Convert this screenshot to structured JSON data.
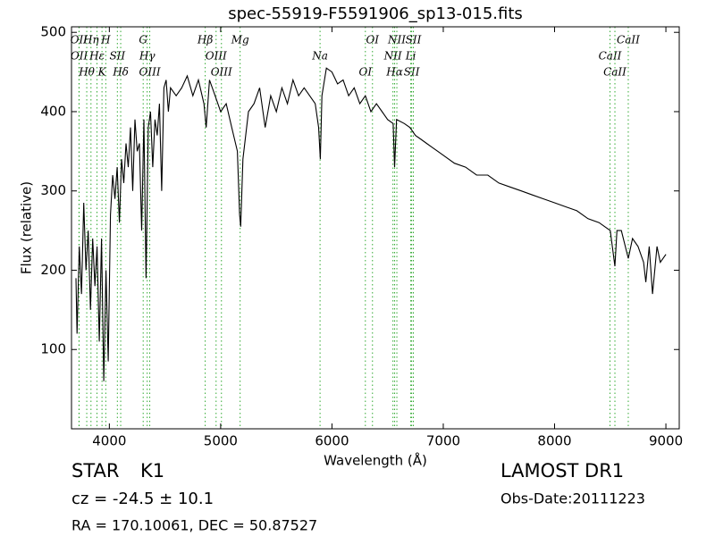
{
  "chart_data": {
    "type": "line",
    "title": "spec-55919-F5591906_sp13-015.fits",
    "x_label": "Wavelength (Å)",
    "y_label": "Flux (relative)",
    "color": "#000000",
    "line_color": "#33aa33",
    "xlim": [
      3660,
      9120
    ],
    "ylim": [
      0,
      507
    ],
    "xticks": [
      4000,
      5000,
      6000,
      7000,
      8000,
      9000
    ],
    "yticks": [
      100,
      200,
      300,
      400,
      500
    ],
    "x": [
      3700,
      3710,
      3730,
      3750,
      3770,
      3790,
      3810,
      3830,
      3850,
      3870,
      3890,
      3910,
      3930,
      3950,
      3970,
      3990,
      4010,
      4030,
      4050,
      4070,
      4090,
      4110,
      4130,
      4150,
      4170,
      4190,
      4210,
      4230,
      4250,
      4270,
      4290,
      4310,
      4330,
      4350,
      4370,
      4390,
      4410,
      4430,
      4450,
      4470,
      4490,
      4510,
      4530,
      4550,
      4600,
      4650,
      4700,
      4750,
      4800,
      4850,
      4870,
      4900,
      4950,
      5000,
      5050,
      5100,
      5150,
      5170,
      5180,
      5200,
      5250,
      5300,
      5350,
      5400,
      5450,
      5500,
      5550,
      5600,
      5650,
      5700,
      5750,
      5800,
      5850,
      5880,
      5895,
      5910,
      5950,
      6000,
      6050,
      6100,
      6150,
      6200,
      6250,
      6300,
      6350,
      6400,
      6450,
      6500,
      6550,
      6563,
      6580,
      6650,
      6700,
      6750,
      6800,
      6850,
      6900,
      6950,
      7000,
      7100,
      7200,
      7300,
      7400,
      7500,
      7600,
      7700,
      7800,
      7900,
      8000,
      8100,
      8200,
      8300,
      8400,
      8500,
      8542,
      8560,
      8600,
      8662,
      8700,
      8750,
      8800,
      8820,
      8850,
      8880,
      8920,
      8950,
      9000
    ],
    "values": [
      190,
      120,
      230,
      170,
      285,
      200,
      250,
      150,
      240,
      180,
      230,
      110,
      240,
      60,
      200,
      85,
      270,
      320,
      290,
      330,
      260,
      340,
      310,
      360,
      330,
      380,
      300,
      390,
      350,
      360,
      250,
      390,
      190,
      380,
      400,
      330,
      390,
      370,
      410,
      300,
      430,
      440,
      400,
      430,
      420,
      430,
      445,
      420,
      440,
      410,
      380,
      440,
      420,
      400,
      410,
      380,
      350,
      270,
      255,
      340,
      400,
      410,
      430,
      380,
      420,
      400,
      430,
      410,
      440,
      420,
      430,
      420,
      410,
      380,
      340,
      420,
      455,
      450,
      435,
      440,
      420,
      430,
      410,
      420,
      400,
      410,
      400,
      390,
      385,
      330,
      390,
      385,
      380,
      370,
      365,
      360,
      355,
      350,
      345,
      335,
      330,
      320,
      320,
      310,
      305,
      300,
      295,
      290,
      285,
      280,
      275,
      265,
      260,
      250,
      205,
      250,
      250,
      215,
      240,
      230,
      210,
      185,
      230,
      170,
      230,
      210,
      220
    ],
    "spectral_lines": [
      {
        "wavelength": 3727,
        "label": "OII"
      },
      {
        "wavelength": 3729,
        "label": "OII"
      },
      {
        "wavelength": 3797,
        "label": "Hθ"
      },
      {
        "wavelength": 3835,
        "label": "Hη"
      },
      {
        "wavelength": 3889,
        "label": "Hε"
      },
      {
        "wavelength": 3934,
        "label": "K"
      },
      {
        "wavelength": 3968,
        "label": "H"
      },
      {
        "wavelength": 4072,
        "label": "SII"
      },
      {
        "wavelength": 4102,
        "label": "Hδ"
      },
      {
        "wavelength": 4304,
        "label": "G"
      },
      {
        "wavelength": 4340,
        "label": "Hγ"
      },
      {
        "wavelength": 4363,
        "label": "OIII"
      },
      {
        "wavelength": 4861,
        "label": "Hβ"
      },
      {
        "wavelength": 4959,
        "label": "OIII"
      },
      {
        "wavelength": 5007,
        "label": "OIII"
      },
      {
        "wavelength": 5175,
        "label": "Mg"
      },
      {
        "wavelength": 5893,
        "label": "Na"
      },
      {
        "wavelength": 6300,
        "label": "OI"
      },
      {
        "wavelength": 6364,
        "label": "OI"
      },
      {
        "wavelength": 6548,
        "label": "NII"
      },
      {
        "wavelength": 6563,
        "label": "Hα"
      },
      {
        "wavelength": 6583,
        "label": "NII"
      },
      {
        "wavelength": 6708,
        "label": "Li"
      },
      {
        "wavelength": 6716,
        "label": "SII"
      },
      {
        "wavelength": 6731,
        "label": "SII"
      },
      {
        "wavelength": 8498,
        "label": "CaII"
      },
      {
        "wavelength": 8542,
        "label": "CaII"
      },
      {
        "wavelength": 8662,
        "label": "CaII"
      }
    ],
    "object_class": "STAR",
    "subclass": "K1",
    "redshift_text": "cz = -24.5 ± 10.1",
    "position_text": "RA = 170.10061, DEC = 50.87527",
    "survey": "LAMOST DR1",
    "obs_date": "Obs-Date:20111223"
  }
}
